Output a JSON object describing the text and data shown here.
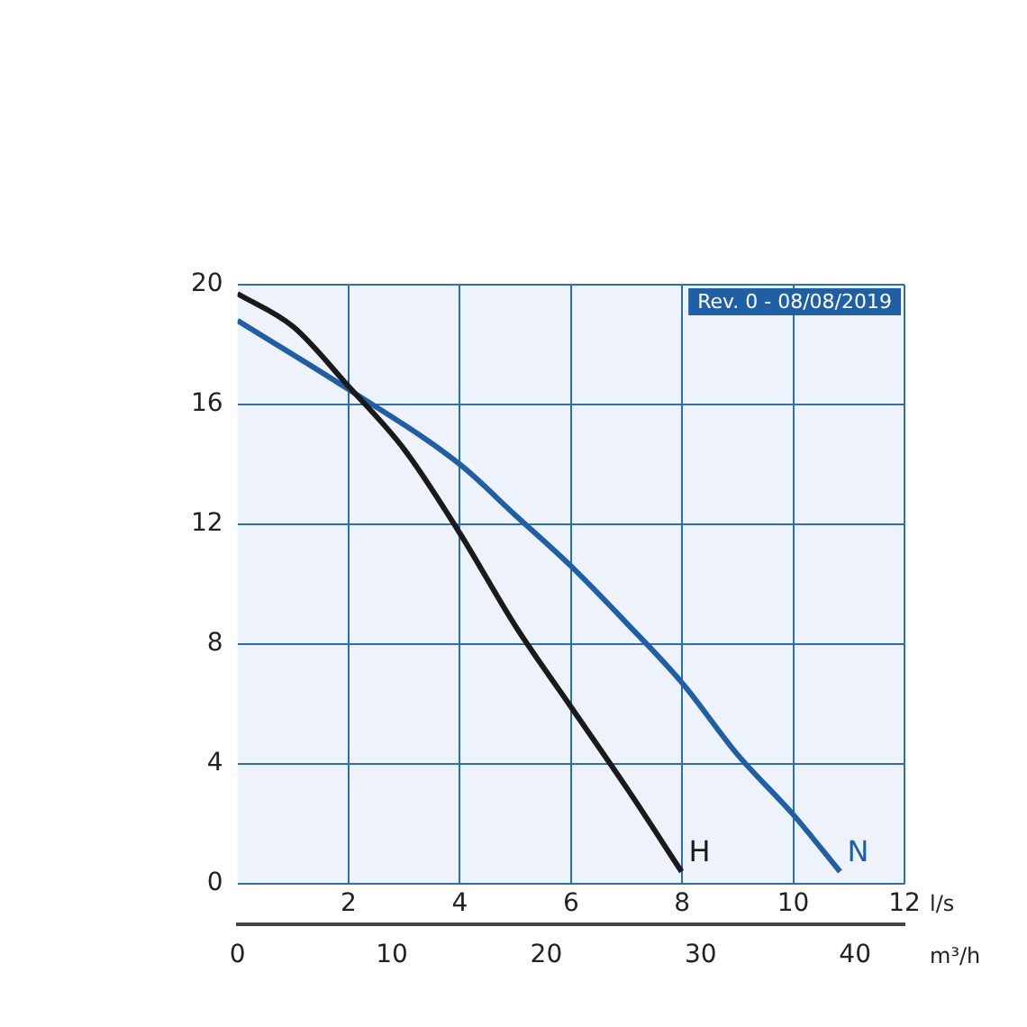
{
  "chart_data": {
    "type": "line",
    "xlabel": "l/s",
    "x2label": "m³/h",
    "xlim": [
      0,
      12
    ],
    "xticks": [
      {
        "value": 0,
        "label": null
      },
      2,
      4,
      6,
      8,
      10,
      12
    ],
    "x2lim": [
      0,
      43.2
    ],
    "x2ticks": [
      0,
      10,
      20,
      30,
      40
    ],
    "ylim": [
      0,
      20
    ],
    "yticks": [
      0,
      4,
      8,
      12,
      16,
      20
    ],
    "grid": true,
    "legend": false,
    "marker": "none",
    "line_style": "solid",
    "annotations": [
      "Rev. 0 - 08/08/2019"
    ],
    "series": [
      {
        "name": "H",
        "color": "#1a1a1a",
        "x": [
          0,
          1,
          2,
          3,
          4,
          5,
          6,
          7,
          7.99
        ],
        "values": [
          19.7,
          18.6,
          16.6,
          14.5,
          11.7,
          8.6,
          5.9,
          3.2,
          0.4
        ]
      },
      {
        "name": "N",
        "color": "#1f5fa6",
        "x": [
          0,
          2,
          4,
          5,
          6,
          7,
          8,
          9,
          10,
          10.84
        ],
        "values": [
          18.8,
          16.5,
          14,
          12.3,
          10.6,
          8.7,
          6.7,
          4.3,
          2.3,
          0.4
        ]
      }
    ]
  }
}
